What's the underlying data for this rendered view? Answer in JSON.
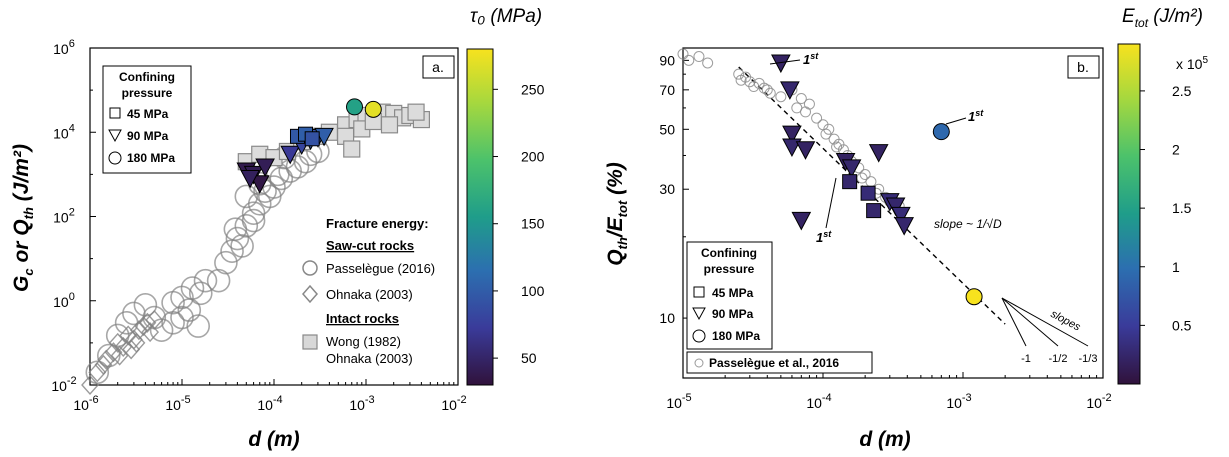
{
  "panel_a": {
    "panel_label": "a.",
    "colorbar": {
      "title": "τ₀ (MPa)",
      "ticks": [
        "250",
        "200",
        "150",
        "100",
        "50"
      ],
      "colormap": [
        "#30123b",
        "#3a3b9a",
        "#2c6fb0",
        "#1f9d8a",
        "#4cc26b",
        "#a6d83e",
        "#f7e21e"
      ]
    },
    "legend": {
      "title_line1": "Confining",
      "title_line2": "pressure",
      "items": [
        {
          "symbol": "square",
          "label": "45 MPa"
        },
        {
          "symbol": "triangle-down",
          "label": "90 MPa"
        },
        {
          "symbol": "circle",
          "label": "180 MPa"
        }
      ]
    },
    "fracture_legend": {
      "heading": "Fracture energy:",
      "sawcut_heading": "Saw-cut rocks",
      "passelegue": "Passelègue (2016)",
      "ohnaka_sawcut": "Ohnaka (2003)",
      "intact_heading": "Intact rocks",
      "wong": "Wong (1982)",
      "ohnaka_intact": "Ohnaka (2003)"
    },
    "x_ticks": [
      {
        "base": "10",
        "exp": "-6"
      },
      {
        "base": "10",
        "exp": "-5"
      },
      {
        "base": "10",
        "exp": "-4"
      },
      {
        "base": "10",
        "exp": "-3"
      },
      {
        "base": "10",
        "exp": "-2"
      }
    ],
    "y_ticks": [
      {
        "base": "10",
        "exp": "-2"
      },
      {
        "base": "10",
        "exp": "0"
      },
      {
        "base": "10",
        "exp": "2"
      },
      {
        "base": "10",
        "exp": "4"
      },
      {
        "base": "10",
        "exp": "6"
      }
    ],
    "xlabel": "d (m)",
    "ylabel_g": "G",
    "ylabel_c": "c",
    "ylabel_or": " or Q",
    "ylabel_th": "th",
    "ylabel_unit": " (J/m²)"
  },
  "panel_b": {
    "panel_label": "b.",
    "colorbar": {
      "title": "E",
      "title_sub": "tot",
      "title_unit": " (J/m²)",
      "multiplier": "x 10",
      "multiplier_exp": "5",
      "ticks": [
        "2.5",
        "2",
        "1.5",
        "1",
        "0.5"
      ]
    },
    "legend": {
      "title_line1": "Confining",
      "title_line2": "pressure",
      "items": [
        {
          "symbol": "square",
          "label": "45 MPa"
        },
        {
          "symbol": "triangle-down",
          "label": "90 MPa"
        },
        {
          "symbol": "circle",
          "label": "180 MPa"
        }
      ],
      "passelegue": "Passelègue et al., 2016"
    },
    "slope_annotation": "slope ~ 1/√D",
    "slopes_label": "slopes",
    "slope_values": [
      "-1",
      "-1/2",
      "-1/3"
    ],
    "first_labels": [
      "1",
      "1",
      "1"
    ],
    "first_sup": "st",
    "x_ticks": [
      {
        "base": "10",
        "exp": "-5"
      },
      {
        "base": "10",
        "exp": "-4"
      },
      {
        "base": "10",
        "exp": "-3"
      },
      {
        "base": "10",
        "exp": "-2"
      }
    ],
    "y_ticks": [
      "90",
      "70",
      "50",
      "30",
      "10"
    ],
    "xlabel": "d (m)",
    "ylabel_q": "Q",
    "ylabel_th": "th",
    "ylabel_e": "/E",
    "ylabel_tot": "tot",
    "ylabel_unit": " (%)"
  },
  "chart_data": [
    {
      "type": "scatter",
      "id": "panel-a",
      "xscale": "log",
      "yscale": "log",
      "xlim": [
        1e-06,
        0.01
      ],
      "ylim": [
        0.01,
        1000000.0
      ],
      "xlabel": "d (m)",
      "ylabel": "Gc or Qth (J/m²)",
      "series": [
        {
          "name": "Passelègue (2016)",
          "marker": "circle-open-gray",
          "points": [
            [
              1.2e-06,
              0.02
            ],
            [
              1.6e-06,
              0.05
            ],
            [
              2e-06,
              0.15
            ],
            [
              2.5e-06,
              0.3
            ],
            [
              3e-06,
              0.5
            ],
            [
              4e-06,
              0.8
            ],
            [
              5e-06,
              0.4
            ],
            [
              6e-06,
              0.2
            ],
            [
              8e-06,
              0.3
            ],
            [
              1e-05,
              1.2
            ],
            [
              1.3e-05,
              2
            ],
            [
              1.6e-05,
              1.5
            ],
            [
              1.8e-05,
              3
            ],
            [
              8e-06,
              0.9
            ],
            [
              1e-05,
              0.4
            ],
            [
              1.2e-05,
              0.6
            ],
            [
              1.5e-05,
              0.25
            ],
            [
              2.5e-05,
              3
            ],
            [
              3e-05,
              8
            ],
            [
              3.5e-05,
              15
            ],
            [
              4e-05,
              30
            ],
            [
              5e-05,
              60
            ],
            [
              4.5e-05,
              20
            ],
            [
              3.8e-05,
              50
            ],
            [
              6e-05,
              120
            ],
            [
              7e-05,
              200
            ],
            [
              8e-05,
              400
            ],
            [
              0.0001,
              500
            ],
            [
              0.00012,
              800
            ],
            [
              0.00015,
              1200
            ],
            [
              0.00018,
              1500
            ],
            [
              0.00022,
              2000
            ],
            [
              0.00025,
              3000
            ],
            [
              0.0003,
              3500
            ],
            [
              5e-05,
              300
            ],
            [
              6e-05,
              80
            ],
            [
              7e-05,
              600
            ],
            [
              9e-05,
              300
            ],
            [
              0.00011,
              1000
            ],
            [
              0.00013,
              2500
            ]
          ]
        },
        {
          "name": "Ohnaka (2003)",
          "marker": "diamond-open-gray",
          "points": [
            [
              1e-06,
              0.01
            ],
            [
              1.2e-06,
              0.02
            ],
            [
              1.5e-06,
              0.04
            ],
            [
              1.8e-06,
              0.06
            ],
            [
              2e-06,
              0.1
            ],
            [
              2.3e-06,
              0.08
            ],
            [
              2.6e-06,
              0.15
            ],
            [
              3e-06,
              0.12
            ],
            [
              3.4e-06,
              0.2
            ],
            [
              3.8e-06,
              0.25
            ],
            [
              4.2e-06,
              0.3
            ],
            [
              5e-06,
              0.35
            ],
            [
              1.4e-06,
              0.03
            ],
            [
              2.1e-06,
              0.05
            ],
            [
              2.8e-06,
              0.07
            ],
            [
              3.2e-06,
              0.1
            ],
            [
              4.5e-06,
              0.18
            ]
          ]
        },
        {
          "name": "Wong (1982)",
          "marker": "square-filled-gray",
          "points": [
            [
              5e-05,
              2000
            ],
            [
              7e-05,
              3000
            ],
            [
              0.0001,
              2500
            ],
            [
              0.00014,
              3500
            ],
            [
              0.0002,
              6000
            ],
            [
              0.0003,
              8000
            ],
            [
              0.0004,
              10000
            ],
            [
              0.0006,
              15000
            ],
            [
              0.0008,
              20000
            ],
            [
              0.001,
              25000
            ],
            [
              0.0015,
              30000
            ],
            [
              0.002,
              28000
            ],
            [
              0.0025,
              22000
            ],
            [
              0.003,
              25000
            ],
            [
              0.004,
              20000
            ],
            [
              0.0018,
              15000
            ],
            [
              0.0006,
              8000
            ],
            [
              0.0009,
              12000
            ],
            [
              0.0012,
              18000
            ],
            [
              0.0035,
              30000
            ],
            [
              0.0007,
              4000
            ]
          ]
        },
        {
          "name": "This study 90 MPa",
          "marker": "triangle-down",
          "points": [
            [
              5e-05,
              1200,
              38
            ],
            [
              6e-05,
              1000,
              40
            ],
            [
              7e-05,
              600,
              35
            ],
            [
              5.5e-05,
              800,
              45
            ],
            [
              8e-05,
              1500,
              42
            ],
            [
              0.00015,
              3000,
              70
            ],
            [
              0.0002,
              5000,
              80
            ],
            [
              0.00025,
              6500,
              95
            ],
            [
              0.0003,
              7500,
              90
            ],
            [
              0.00035,
              8000,
              100
            ]
          ]
        },
        {
          "name": "This study 45 MPa",
          "marker": "square",
          "points": [
            [
              0.00018,
              8000,
              95
            ],
            [
              0.00022,
              9000,
              100
            ],
            [
              0.00026,
              7000,
              90
            ]
          ]
        },
        {
          "name": "This study 180 MPa",
          "marker": "circle",
          "points": [
            [
              0.00075,
              40000,
              160
            ],
            [
              0.0012,
              35000,
              270
            ]
          ]
        }
      ],
      "colorbar": {
        "label": "τ₀ (MPa)",
        "range": [
          30,
          280
        ]
      }
    },
    {
      "type": "scatter",
      "id": "panel-b",
      "xscale": "log",
      "yscale": "log",
      "xlim": [
        1e-05,
        0.01
      ],
      "ylim": [
        6,
        100
      ],
      "xlabel": "d (m)",
      "ylabel": "Qth/Etot (%)",
      "series": [
        {
          "name": "Passelègue et al., 2016",
          "marker": "circle-open-small",
          "points": [
            [
              1e-05,
              95
            ],
            [
              1.1e-05,
              90
            ],
            [
              1.3e-05,
              93
            ],
            [
              1.5e-05,
              88
            ],
            [
              2.5e-05,
              80
            ],
            [
              2.8e-05,
              78
            ],
            [
              3e-05,
              75
            ],
            [
              3.2e-05,
              72
            ],
            [
              3.5e-05,
              74
            ],
            [
              4e-05,
              70
            ],
            [
              4.2e-05,
              68
            ],
            [
              5e-05,
              66
            ],
            [
              6e-05,
              70
            ],
            [
              7e-05,
              65
            ],
            [
              8e-05,
              62
            ],
            [
              9e-05,
              55
            ],
            [
              0.0001,
              52
            ],
            [
              0.00011,
              50
            ],
            [
              0.00012,
              46
            ],
            [
              0.00013,
              44
            ],
            [
              0.00014,
              42
            ],
            [
              0.00015,
              40
            ],
            [
              0.00016,
              38
            ],
            [
              0.00018,
              36
            ],
            [
              0.0002,
              34
            ],
            [
              0.00022,
              32
            ],
            [
              0.00025,
              30
            ],
            [
              0.00028,
              28
            ],
            [
              0.0003,
              27
            ],
            [
              0.00035,
              26
            ],
            [
              2.6e-05,
              76
            ],
            [
              3.8e-05,
              71
            ],
            [
              6.5e-05,
              60
            ],
            [
              7.5e-05,
              58
            ],
            [
              0.000105,
              48
            ],
            [
              0.000125,
              43
            ],
            [
              0.00019,
              33
            ],
            [
              0.00024,
              29
            ]
          ]
        },
        {
          "name": "90 MPa",
          "marker": "triangle-down",
          "points": [
            [
              5e-05,
              88,
              0.2
            ],
            [
              5.8e-05,
              70,
              0.25
            ],
            [
              6e-05,
              48,
              0.2
            ],
            [
              6e-05,
              43,
              0.25
            ],
            [
              7.5e-05,
              42,
              0.2
            ],
            [
              0.000145,
              38,
              0.2
            ],
            [
              0.00016,
              36,
              0.25
            ],
            [
              0.00025,
              41,
              0.2
            ],
            [
              7e-05,
              23,
              0.2
            ],
            [
              0.0003,
              27,
              0.3
            ],
            [
              0.00033,
              26,
              0.25
            ],
            [
              0.00036,
              24,
              0.3
            ],
            [
              0.00038,
              22,
              0.25
            ]
          ]
        },
        {
          "name": "45 MPa",
          "marker": "square",
          "points": [
            [
              0.000155,
              32,
              0.25
            ],
            [
              0.00021,
              29,
              0.3
            ],
            [
              0.00023,
              25,
              0.25
            ]
          ]
        },
        {
          "name": "180 MPa",
          "marker": "circle",
          "points": [
            [
              0.0007,
              49,
              0.9
            ],
            [
              0.0012,
              12,
              2.9
            ]
          ]
        }
      ],
      "fit_line": {
        "slope": -0.5,
        "from": [
          2.5e-05,
          85
        ],
        "to": [
          0.002,
          9.5
        ]
      },
      "colorbar": {
        "label": "Etot (J/m²) x 10^5",
        "range": [
          0,
          2.9
        ]
      }
    }
  ]
}
